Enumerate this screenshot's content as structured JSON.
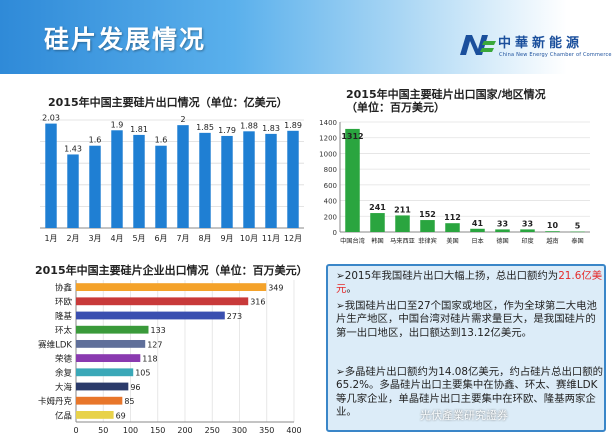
{
  "header": {
    "title": "硅片发展情况",
    "logo_text": "中華新能源",
    "logo_subtitle": "China New Energy Chamber of Commerce"
  },
  "colors": {
    "bar_blue": "#1f7fd3",
    "bar_green": "#2aa53f",
    "box_border": "#3a86c8",
    "highlight": "#e52a2a"
  },
  "chart_data": [
    {
      "type": "bar",
      "title": "2015年中国主要硅片出口情况（单位：亿美元）",
      "categories": [
        "1月",
        "2月",
        "3月",
        "4月",
        "5月",
        "6月",
        "7月",
        "8月",
        "9月",
        "10月",
        "11月",
        "12月"
      ],
      "values": [
        2.03,
        1.43,
        1.6,
        1.9,
        1.81,
        1.6,
        2,
        1.85,
        1.79,
        1.88,
        1.83,
        1.89
      ],
      "value_labels": [
        "2.03",
        "1.43",
        "1.6",
        "1.9",
        "1.81",
        "1.6",
        "2",
        "1.85",
        "1.79",
        "1.88",
        "1.83",
        "1.89"
      ],
      "ylim": [
        0,
        2.1
      ],
      "grid": true,
      "color": "#1f7fd3"
    },
    {
      "type": "bar",
      "title": "2015年中国主要硅片出口国家/地区情况",
      "subtitle": "（单位：百万美元）",
      "categories": [
        "中国台湾",
        "韩国",
        "马来西亚",
        "菲律宾",
        "美国",
        "日本",
        "德国",
        "印度",
        "越南",
        "泰国"
      ],
      "values": [
        1312,
        241,
        211,
        152,
        112,
        41,
        33,
        33,
        10,
        5
      ],
      "y_ticks": [
        "0",
        "200",
        "400",
        "600",
        "800",
        "1000",
        "1200",
        "1400"
      ],
      "ylim": [
        0,
        1400
      ],
      "grid": true,
      "color": "#2aa53f"
    },
    {
      "type": "bar",
      "orientation": "horizontal",
      "title": "2015年中国主要硅片企业出口情况（单位：百万美元）",
      "categories": [
        "协鑫",
        "环欧",
        "隆基",
        "环太",
        "赛维LDK",
        "荣德",
        "余复",
        "大海",
        "卡姆丹克",
        "亿晶"
      ],
      "values": [
        349,
        316,
        273,
        133,
        127,
        118,
        105,
        96,
        85,
        69
      ],
      "colors": [
        "#f4a22a",
        "#c83a3a",
        "#3a4fb0",
        "#3a9a3a",
        "#5f6f9a",
        "#8a3ab0",
        "#3aa8b8",
        "#2a3a6a",
        "#e8762a",
        "#e8d24a"
      ],
      "x_ticks": [
        "0",
        "50",
        "100",
        "150",
        "200",
        "250",
        "300",
        "350",
        "400"
      ],
      "xlim": [
        0,
        400
      ],
      "grid": true
    }
  ],
  "notes": {
    "p1_prefix": "➢2015年我国硅片出口大幅上扬，总出口额约为",
    "p1_highlight": "21.6亿美元",
    "p1_suffix": "。",
    "p2": "➢我国硅片出口至27个国家或地区，作为全球第二大电池片生产地区，中国台湾对硅片需求量巨大，是我国硅片的第一出口地区，出口额达到13.12亿美元。",
    "p3": "➢多晶硅片出口额约为14.08亿美元，约占硅片总出口额的65.2%。多晶硅片出口主要集中在协鑫、环太、赛维LDK等几家企业，单晶硅片出口主要集中在环欧、隆基两家企业。"
  },
  "watermark": "光伏產業研究證券"
}
